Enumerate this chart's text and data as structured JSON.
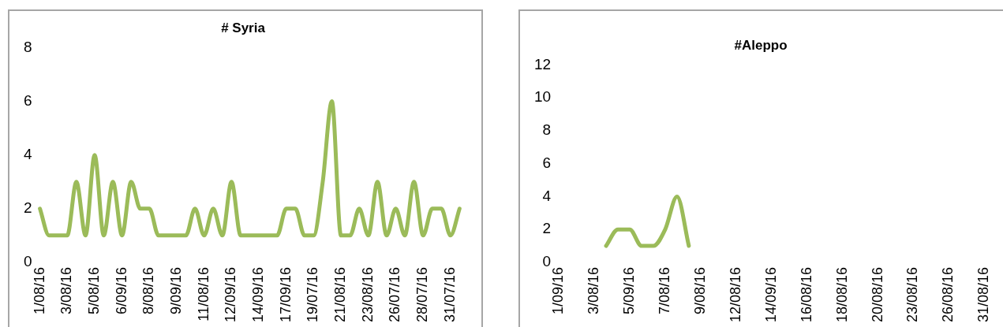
{
  "chart_data": [
    {
      "type": "line",
      "title": "# Syria",
      "categories": [
        "1/08/16",
        null,
        null,
        "3/08/16",
        null,
        null,
        "5/08/16",
        null,
        null,
        "6/09/16",
        null,
        null,
        "8/08/16",
        null,
        null,
        "9/09/16",
        null,
        null,
        "11/08/16",
        null,
        null,
        "12/09/16",
        null,
        null,
        "14/09/16",
        null,
        null,
        "17/09/16",
        null,
        null,
        "19/07/16",
        null,
        null,
        "21/08/16",
        null,
        null,
        "23/08/16",
        null,
        null,
        "26/07/16",
        null,
        null,
        "28/07/16",
        null,
        null,
        "31/07/16",
        null
      ],
      "series": [
        {
          "color": "#9bbb59",
          "values": [
            2,
            1,
            1,
            1,
            3,
            1,
            4,
            1,
            3,
            1,
            3,
            2,
            2,
            1,
            1,
            1,
            1,
            2,
            1,
            2,
            1,
            3,
            1,
            1,
            1,
            1,
            1,
            2,
            2,
            1,
            1,
            3,
            6,
            1,
            1,
            2,
            1,
            3,
            1,
            2,
            1,
            3,
            1,
            2,
            2,
            1,
            2
          ]
        }
      ],
      "ylim": [
        0,
        8
      ],
      "yticks": [
        0,
        2,
        4,
        6,
        8
      ],
      "marker": "none"
    },
    {
      "type": "line",
      "title": "#Aleppo",
      "categories": [
        "1/09/16",
        null,
        null,
        "3/08/16",
        null,
        null,
        "5/09/16",
        null,
        null,
        "7/08/16",
        null,
        null,
        "9/08/16",
        null,
        null,
        "12/08/16",
        null,
        null,
        "14/09/16",
        null,
        null,
        "16/08/16",
        null,
        null,
        "18/08/16",
        null,
        null,
        "20/08/16",
        null,
        null,
        "23/08/16",
        null,
        null,
        "26/08/16",
        null,
        null,
        "31/08/16"
      ],
      "series": [
        {
          "color": "#9bbb59",
          "values": [
            null,
            null,
            null,
            null,
            1,
            2,
            2,
            1,
            1,
            2,
            4,
            1,
            null,
            null,
            null,
            null,
            null,
            null,
            null,
            null,
            null,
            null,
            null,
            null,
            null,
            null,
            null,
            null,
            null,
            null,
            null,
            null,
            null,
            null,
            null,
            null,
            null
          ]
        }
      ],
      "ylim": [
        0,
        12
      ],
      "yticks": [
        0,
        2,
        4,
        6,
        8,
        10,
        12
      ],
      "marker": "none"
    }
  ]
}
